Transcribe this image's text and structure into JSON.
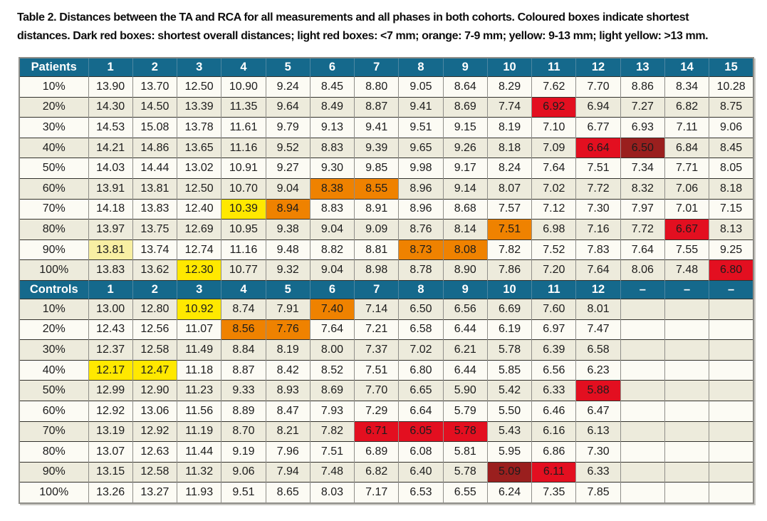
{
  "caption": {
    "line1": "Table 2. Distances between the TA and RCA for all measurements and all phases in both cohorts. Coloured boxes indicate shortest",
    "line2": "distances. Dark red boxes: shortest overall distances; light red boxes: <7 mm; orange: 7-9 mm; yellow: 9-13 mm; light yellow: >13 mm."
  },
  "colors": {
    "header_bg": "#15698c",
    "row_white": "#fcfbf4",
    "row_beige": "#edebdc",
    "red": "#e30f20",
    "dark_red": "#9a1f1e",
    "orange": "#ef8200",
    "yellow": "#ffe800",
    "light_yellow": "#f8efa3"
  },
  "chart_data": {
    "type": "table",
    "title": "Table 2. Distances between the TA and RCA for all measurements and all phases in both cohorts.",
    "units": "mm",
    "legend": {
      "dark_red": "shortest overall distances",
      "red": "<7 mm",
      "orange": "7-9 mm",
      "yellow": "9-13 mm",
      "light_yellow": ">13 mm"
    },
    "sections": [
      {
        "name": "Patients",
        "columns": [
          "1",
          "2",
          "3",
          "4",
          "5",
          "6",
          "7",
          "8",
          "9",
          "10",
          "11",
          "12",
          "13",
          "14",
          "15"
        ],
        "rows": [
          {
            "label": "10%",
            "values": [
              "13.90",
              "13.70",
              "12.50",
              "10.90",
              "9.24",
              "8.45",
              "8.80",
              "9.05",
              "8.64",
              "8.29",
              "7.62",
              "7.70",
              "8.86",
              "8.34",
              "10.28"
            ],
            "highlights": {}
          },
          {
            "label": "20%",
            "values": [
              "14.30",
              "14.50",
              "13.39",
              "11.35",
              "9.64",
              "8.49",
              "8.87",
              "9.41",
              "8.69",
              "7.74",
              "6.92",
              "6.94",
              "7.27",
              "6.82",
              "8.75"
            ],
            "highlights": {
              "11": "red"
            }
          },
          {
            "label": "30%",
            "values": [
              "14.53",
              "15.08",
              "13.78",
              "11.61",
              "9.79",
              "9.13",
              "9.41",
              "9.51",
              "9.15",
              "8.19",
              "7.10",
              "6.77",
              "6.93",
              "7.11",
              "9.06"
            ],
            "highlights": {}
          },
          {
            "label": "40%",
            "values": [
              "14.21",
              "14.86",
              "13.65",
              "11.16",
              "9.52",
              "8.83",
              "9.39",
              "9.65",
              "9.26",
              "8.18",
              "7.09",
              "6.64",
              "6.50",
              "6.84",
              "8.45"
            ],
            "highlights": {
              "12": "red",
              "13": "darkred"
            }
          },
          {
            "label": "50%",
            "values": [
              "14.03",
              "14.44",
              "13.02",
              "10.91",
              "9.27",
              "9.30",
              "9.85",
              "9.98",
              "9.17",
              "8.24",
              "7.64",
              "7.51",
              "7.34",
              "7.71",
              "8.05"
            ],
            "highlights": {}
          },
          {
            "label": "60%",
            "values": [
              "13.91",
              "13.81",
              "12.50",
              "10.70",
              "9.04",
              "8.38",
              "8.55",
              "8.96",
              "9.14",
              "8.07",
              "7.02",
              "7.72",
              "8.32",
              "7.06",
              "8.18"
            ],
            "highlights": {
              "6": "orange",
              "7": "orange"
            }
          },
          {
            "label": "70%",
            "values": [
              "14.18",
              "13.83",
              "12.40",
              "10.39",
              "8.94",
              "8.83",
              "8.91",
              "8.96",
              "8.68",
              "7.57",
              "7.12",
              "7.30",
              "7.97",
              "7.01",
              "7.15"
            ],
            "highlights": {
              "4": "yellow",
              "5": "orange"
            }
          },
          {
            "label": "80%",
            "values": [
              "13.97",
              "13.75",
              "12.69",
              "10.95",
              "9.38",
              "9.04",
              "9.09",
              "8.76",
              "8.14",
              "7.51",
              "6.98",
              "7.16",
              "7.72",
              "6.67",
              "8.13"
            ],
            "highlights": {
              "10": "orange",
              "14": "red"
            }
          },
          {
            "label": "90%",
            "values": [
              "13.81",
              "13.74",
              "12.74",
              "11.16",
              "9.48",
              "8.82",
              "8.81",
              "8.73",
              "8.08",
              "7.82",
              "7.52",
              "7.83",
              "7.64",
              "7.55",
              "9.25"
            ],
            "highlights": {
              "1": "lightyellow",
              "8": "orange",
              "9": "orange"
            }
          },
          {
            "label": "100%",
            "values": [
              "13.83",
              "13.62",
              "12.30",
              "10.77",
              "9.32",
              "9.04",
              "8.98",
              "8.78",
              "8.90",
              "7.86",
              "7.20",
              "7.64",
              "8.06",
              "7.48",
              "6.80"
            ],
            "highlights": {
              "3": "yellow",
              "15": "red"
            }
          }
        ]
      },
      {
        "name": "Controls",
        "columns": [
          "1",
          "2",
          "3",
          "4",
          "5",
          "6",
          "7",
          "8",
          "9",
          "10",
          "11",
          "12",
          "–",
          "–",
          "–"
        ],
        "rows": [
          {
            "label": "10%",
            "values": [
              "13.00",
              "12.80",
              "10.92",
              "8.74",
              "7.91",
              "7.40",
              "7.14",
              "6.50",
              "6.56",
              "6.69",
              "7.60",
              "8.01"
            ],
            "highlights": {
              "3": "yellow",
              "6": "orange"
            }
          },
          {
            "label": "20%",
            "values": [
              "12.43",
              "12.56",
              "11.07",
              "8.56",
              "7.76",
              "7.64",
              "7.21",
              "6.58",
              "6.44",
              "6.19",
              "6.97",
              "7.47"
            ],
            "highlights": {
              "4": "orange",
              "5": "orange"
            }
          },
          {
            "label": "30%",
            "values": [
              "12.37",
              "12.58",
              "11.49",
              "8.84",
              "8.19",
              "8.00",
              "7.37",
              "7.02",
              "6.21",
              "5.78",
              "6.39",
              "6.58"
            ],
            "highlights": {}
          },
          {
            "label": "40%",
            "values": [
              "12.17",
              "12.47",
              "11.18",
              "8.87",
              "8.42",
              "8.52",
              "7.51",
              "6.80",
              "6.44",
              "5.85",
              "6.56",
              "6.23"
            ],
            "highlights": {
              "1": "yellow",
              "2": "yellow"
            }
          },
          {
            "label": "50%",
            "values": [
              "12.99",
              "12.90",
              "11.23",
              "9.33",
              "8.93",
              "8.69",
              "7.70",
              "6.65",
              "5.90",
              "5.42",
              "6.33",
              "5.88"
            ],
            "highlights": {
              "12": "red"
            }
          },
          {
            "label": "60%",
            "values": [
              "12.92",
              "13.06",
              "11.56",
              "8.89",
              "8.47",
              "7.93",
              "7.29",
              "6.64",
              "5.79",
              "5.50",
              "6.46",
              "6.47"
            ],
            "highlights": {}
          },
          {
            "label": "70%",
            "values": [
              "13.19",
              "12.92",
              "11.19",
              "8.70",
              "8.21",
              "7.82",
              "6.71",
              "6.05",
              "5.78",
              "5.43",
              "6.16",
              "6.13"
            ],
            "highlights": {
              "7": "red",
              "8": "red",
              "9": "red"
            }
          },
          {
            "label": "80%",
            "values": [
              "13.07",
              "12.63",
              "11.44",
              "9.19",
              "7.96",
              "7.51",
              "6.89",
              "6.08",
              "5.81",
              "5.95",
              "6.86",
              "7.30"
            ],
            "highlights": {}
          },
          {
            "label": "90%",
            "values": [
              "13.15",
              "12.58",
              "11.32",
              "9.06",
              "7.94",
              "7.48",
              "6.82",
              "6.40",
              "5.78",
              "5.09",
              "6.11",
              "6.33"
            ],
            "highlights": {
              "10": "darkred",
              "11": "red"
            }
          },
          {
            "label": "100%",
            "values": [
              "13.26",
              "13.27",
              "11.93",
              "9.51",
              "8.65",
              "8.03",
              "7.17",
              "6.53",
              "6.55",
              "6.24",
              "7.35",
              "7.85"
            ],
            "highlights": {}
          }
        ]
      }
    ]
  }
}
